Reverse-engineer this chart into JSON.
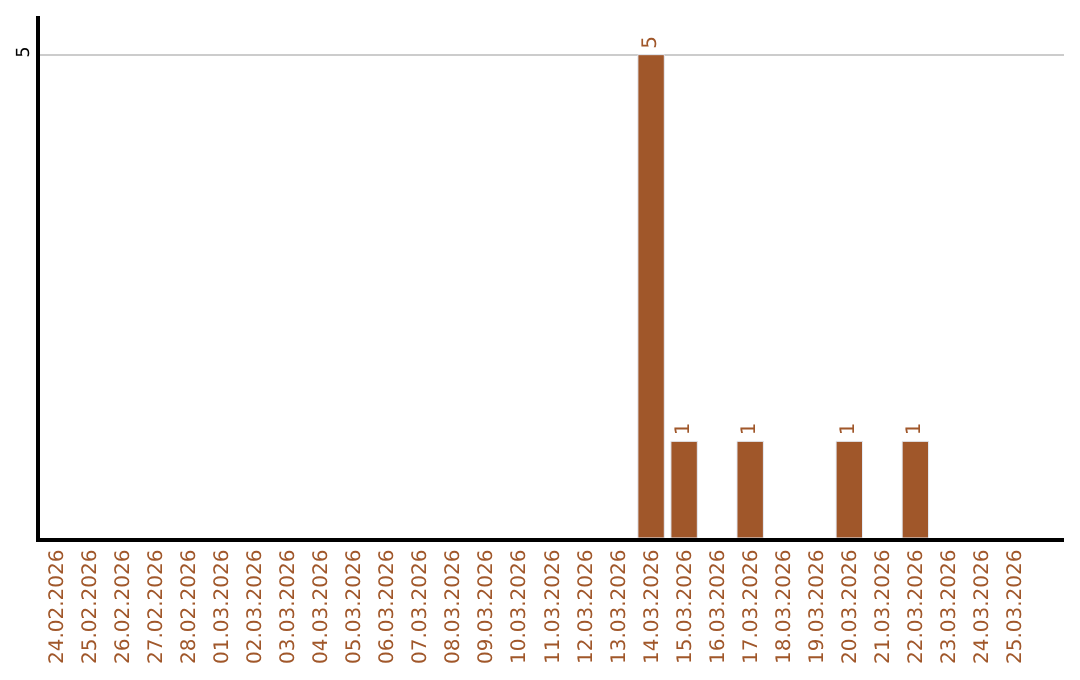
{
  "chart_data": {
    "type": "bar",
    "categories": [
      "24.02.2026",
      "25.02.2026",
      "26.02.2026",
      "27.02.2026",
      "28.02.2026",
      "01.03.2026",
      "02.03.2026",
      "03.03.2026",
      "04.03.2026",
      "05.03.2026",
      "06.03.2026",
      "07.03.2026",
      "08.03.2026",
      "09.03.2026",
      "10.03.2026",
      "11.03.2026",
      "12.03.2026",
      "13.03.2026",
      "14.03.2026",
      "15.03.2026",
      "16.03.2026",
      "17.03.2026",
      "18.03.2026",
      "19.03.2026",
      "20.03.2026",
      "21.03.2026",
      "22.03.2026",
      "23.03.2026",
      "24.03.2026",
      "25.03.2026"
    ],
    "values": [
      null,
      null,
      null,
      null,
      null,
      null,
      null,
      null,
      null,
      null,
      null,
      null,
      null,
      null,
      null,
      null,
      null,
      null,
      5,
      1,
      null,
      1,
      null,
      null,
      1,
      null,
      1,
      null,
      null,
      null
    ],
    "color": "#a0572a",
    "ylim": [
      0,
      5.4
    ],
    "yticks": [
      5
    ],
    "grid": "y",
    "data_labels": true,
    "legend": false
  }
}
